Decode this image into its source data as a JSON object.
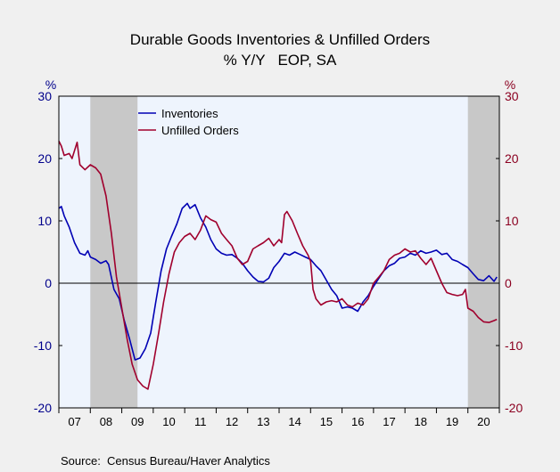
{
  "chart_data": {
    "type": "line",
    "title": "Durable Goods Inventories & Unfilled Orders",
    "subtitle": "% Y/Y   EOP, SA",
    "ylabel_left": "%",
    "ylabel_right": "%",
    "ylim": [
      -20,
      30
    ],
    "yticks": [
      "30",
      "20",
      "10",
      "0",
      "-10",
      "-20"
    ],
    "x_range": [
      2007.0,
      2021.0
    ],
    "xtick_labels": [
      "07",
      "08",
      "09",
      "10",
      "11",
      "12",
      "13",
      "14",
      "15",
      "16",
      "17",
      "18",
      "19",
      "20"
    ],
    "recessions": [
      [
        2008.0,
        2009.5
      ],
      [
        2020.0,
        2021.0
      ]
    ],
    "legend_position": "top-left",
    "grid": false,
    "zero_line": true,
    "series": [
      {
        "name": "Inventories",
        "color": "#0000b4",
        "points": [
          [
            2007.0,
            12.0
          ],
          [
            2007.08,
            12.3
          ],
          [
            2007.17,
            10.8
          ],
          [
            2007.33,
            9.0
          ],
          [
            2007.5,
            6.5
          ],
          [
            2007.67,
            4.8
          ],
          [
            2007.83,
            4.5
          ],
          [
            2007.92,
            5.2
          ],
          [
            2008.0,
            4.2
          ],
          [
            2008.17,
            3.8
          ],
          [
            2008.33,
            3.2
          ],
          [
            2008.5,
            3.6
          ],
          [
            2008.58,
            3.0
          ],
          [
            2008.75,
            -1.0
          ],
          [
            2008.92,
            -2.5
          ],
          [
            2009.08,
            -6.0
          ],
          [
            2009.25,
            -9.0
          ],
          [
            2009.42,
            -12.3
          ],
          [
            2009.58,
            -12.0
          ],
          [
            2009.75,
            -10.5
          ],
          [
            2009.92,
            -8.0
          ],
          [
            2010.08,
            -3.0
          ],
          [
            2010.25,
            2.0
          ],
          [
            2010.42,
            5.5
          ],
          [
            2010.58,
            7.5
          ],
          [
            2010.75,
            9.5
          ],
          [
            2010.92,
            12.0
          ],
          [
            2011.08,
            12.8
          ],
          [
            2011.17,
            12.0
          ],
          [
            2011.33,
            12.6
          ],
          [
            2011.5,
            10.5
          ],
          [
            2011.67,
            9.0
          ],
          [
            2011.83,
            7.0
          ],
          [
            2012.0,
            5.5
          ],
          [
            2012.17,
            4.8
          ],
          [
            2012.33,
            4.5
          ],
          [
            2012.5,
            4.6
          ],
          [
            2012.67,
            4.0
          ],
          [
            2012.83,
            3.2
          ],
          [
            2013.0,
            2.0
          ],
          [
            2013.17,
            1.0
          ],
          [
            2013.33,
            0.3
          ],
          [
            2013.5,
            0.2
          ],
          [
            2013.67,
            0.8
          ],
          [
            2013.83,
            2.5
          ],
          [
            2014.0,
            3.5
          ],
          [
            2014.17,
            4.8
          ],
          [
            2014.33,
            4.5
          ],
          [
            2014.5,
            5.0
          ],
          [
            2014.67,
            4.6
          ],
          [
            2014.83,
            4.2
          ],
          [
            2015.0,
            3.8
          ],
          [
            2015.17,
            2.8
          ],
          [
            2015.33,
            2.0
          ],
          [
            2015.5,
            0.5
          ],
          [
            2015.67,
            -1.0
          ],
          [
            2015.83,
            -2.0
          ],
          [
            2016.0,
            -4.0
          ],
          [
            2016.17,
            -3.8
          ],
          [
            2016.33,
            -4.0
          ],
          [
            2016.5,
            -4.5
          ],
          [
            2016.67,
            -3.0
          ],
          [
            2016.83,
            -2.0
          ],
          [
            2017.0,
            -0.5
          ],
          [
            2017.17,
            0.8
          ],
          [
            2017.33,
            2.0
          ],
          [
            2017.5,
            2.8
          ],
          [
            2017.67,
            3.2
          ],
          [
            2017.83,
            4.0
          ],
          [
            2018.0,
            4.2
          ],
          [
            2018.17,
            4.8
          ],
          [
            2018.33,
            4.5
          ],
          [
            2018.5,
            5.2
          ],
          [
            2018.67,
            4.8
          ],
          [
            2018.83,
            5.0
          ],
          [
            2019.0,
            5.3
          ],
          [
            2019.17,
            4.6
          ],
          [
            2019.33,
            4.8
          ],
          [
            2019.5,
            3.8
          ],
          [
            2019.67,
            3.5
          ],
          [
            2019.83,
            3.0
          ],
          [
            2020.0,
            2.5
          ],
          [
            2020.17,
            1.5
          ],
          [
            2020.33,
            0.6
          ],
          [
            2020.5,
            0.4
          ],
          [
            2020.67,
            1.2
          ],
          [
            2020.83,
            0.3
          ],
          [
            2020.92,
            1.0
          ]
        ]
      },
      {
        "name": "Unfilled Orders",
        "color": "#a0002d",
        "points": [
          [
            2007.0,
            22.8
          ],
          [
            2007.08,
            22.0
          ],
          [
            2007.17,
            20.5
          ],
          [
            2007.33,
            20.8
          ],
          [
            2007.42,
            20.0
          ],
          [
            2007.58,
            22.6
          ],
          [
            2007.67,
            19.0
          ],
          [
            2007.83,
            18.2
          ],
          [
            2008.0,
            19.0
          ],
          [
            2008.17,
            18.5
          ],
          [
            2008.33,
            17.5
          ],
          [
            2008.5,
            14.0
          ],
          [
            2008.67,
            8.0
          ],
          [
            2008.83,
            1.0
          ],
          [
            2009.0,
            -4.0
          ],
          [
            2009.17,
            -9.0
          ],
          [
            2009.33,
            -13.0
          ],
          [
            2009.5,
            -15.5
          ],
          [
            2009.67,
            -16.5
          ],
          [
            2009.83,
            -17.0
          ],
          [
            2010.0,
            -13.0
          ],
          [
            2010.17,
            -8.0
          ],
          [
            2010.33,
            -3.0
          ],
          [
            2010.5,
            1.5
          ],
          [
            2010.67,
            5.0
          ],
          [
            2010.83,
            6.5
          ],
          [
            2011.0,
            7.5
          ],
          [
            2011.17,
            8.0
          ],
          [
            2011.33,
            7.0
          ],
          [
            2011.5,
            8.5
          ],
          [
            2011.67,
            10.8
          ],
          [
            2011.83,
            10.2
          ],
          [
            2012.0,
            9.8
          ],
          [
            2012.17,
            8.0
          ],
          [
            2012.33,
            7.0
          ],
          [
            2012.5,
            6.0
          ],
          [
            2012.67,
            4.0
          ],
          [
            2012.83,
            3.0
          ],
          [
            2013.0,
            3.5
          ],
          [
            2013.17,
            5.5
          ],
          [
            2013.33,
            6.0
          ],
          [
            2013.5,
            6.5
          ],
          [
            2013.67,
            7.2
          ],
          [
            2013.83,
            6.0
          ],
          [
            2014.0,
            7.0
          ],
          [
            2014.08,
            6.5
          ],
          [
            2014.17,
            11.0
          ],
          [
            2014.25,
            11.5
          ],
          [
            2014.42,
            10.0
          ],
          [
            2014.58,
            8.0
          ],
          [
            2014.75,
            6.0
          ],
          [
            2014.92,
            4.5
          ],
          [
            2015.0,
            3.5
          ],
          [
            2015.08,
            -1.0
          ],
          [
            2015.17,
            -2.5
          ],
          [
            2015.33,
            -3.5
          ],
          [
            2015.5,
            -3.0
          ],
          [
            2015.67,
            -2.8
          ],
          [
            2015.83,
            -3.0
          ],
          [
            2016.0,
            -2.5
          ],
          [
            2016.17,
            -3.5
          ],
          [
            2016.33,
            -3.8
          ],
          [
            2016.5,
            -3.2
          ],
          [
            2016.67,
            -3.5
          ],
          [
            2016.83,
            -2.5
          ],
          [
            2017.0,
            0.0
          ],
          [
            2017.17,
            1.0
          ],
          [
            2017.33,
            2.0
          ],
          [
            2017.5,
            3.8
          ],
          [
            2017.67,
            4.5
          ],
          [
            2017.83,
            4.8
          ],
          [
            2018.0,
            5.5
          ],
          [
            2018.17,
            5.0
          ],
          [
            2018.33,
            5.2
          ],
          [
            2018.5,
            4.0
          ],
          [
            2018.67,
            3.0
          ],
          [
            2018.83,
            4.0
          ],
          [
            2019.0,
            2.0
          ],
          [
            2019.17,
            0.0
          ],
          [
            2019.33,
            -1.5
          ],
          [
            2019.5,
            -1.8
          ],
          [
            2019.67,
            -2.0
          ],
          [
            2019.83,
            -1.8
          ],
          [
            2019.92,
            -1.0
          ],
          [
            2020.0,
            -4.0
          ],
          [
            2020.17,
            -4.5
          ],
          [
            2020.33,
            -5.5
          ],
          [
            2020.5,
            -6.2
          ],
          [
            2020.67,
            -6.3
          ],
          [
            2020.83,
            -6.0
          ],
          [
            2020.92,
            -5.8
          ]
        ]
      }
    ]
  },
  "source": "Source:  Census Bureau/Haver Analytics"
}
